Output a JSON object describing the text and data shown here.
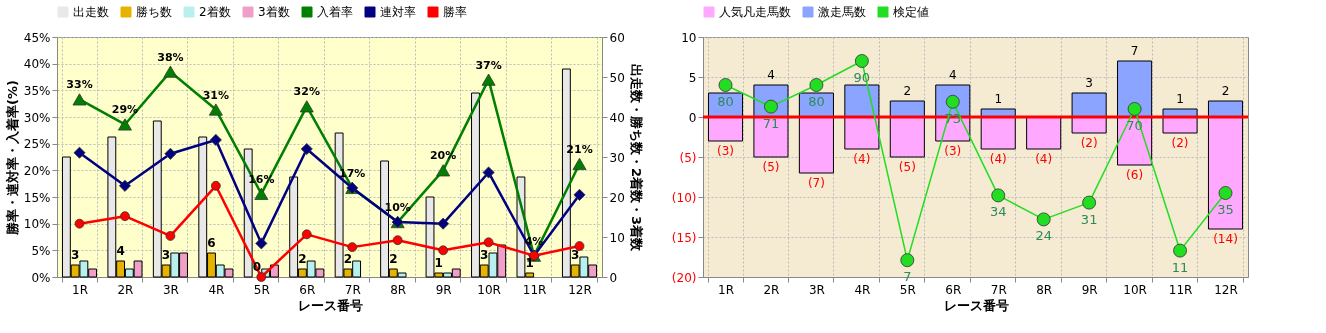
{
  "chart_data": [
    {
      "type": "bar",
      "xlabel": "レース番号",
      "ylabel": "勝率・連対率・入着率(%)",
      "y2label": "出走数・勝ち数・2着数・3着数",
      "categories": [
        "1R",
        "2R",
        "3R",
        "4R",
        "5R",
        "6R",
        "7R",
        "8R",
        "9R",
        "10R",
        "11R",
        "12R"
      ],
      "ylim": [
        0,
        45
      ],
      "yticks": [
        {
          "value": 0,
          "label": "0%"
        },
        {
          "value": 5,
          "label": "5%"
        },
        {
          "value": 10,
          "label": "10%"
        },
        {
          "value": 15,
          "label": "15%"
        },
        {
          "value": 20,
          "label": "20%"
        },
        {
          "value": 25,
          "label": "25%"
        },
        {
          "value": 30,
          "label": "30%"
        },
        {
          "value": 35,
          "label": "35%"
        },
        {
          "value": 40,
          "label": "40%"
        },
        {
          "value": 45,
          "label": "45%"
        }
      ],
      "y2lim": [
        0,
        60
      ],
      "y2ticks": [
        0,
        10,
        20,
        30,
        40,
        50,
        60
      ],
      "grid": true,
      "legend": "top",
      "series": [
        {
          "name": "出走数",
          "axis": "y2",
          "color": "#e8e8e8",
          "values": [
            30,
            35,
            39,
            35,
            32,
            25,
            36,
            29,
            20,
            46,
            25,
            52
          ]
        },
        {
          "name": "勝ち数",
          "axis": "y2",
          "color": "#e6b400",
          "values": [
            3,
            4,
            3,
            6,
            0,
            2,
            2,
            2,
            1,
            3,
            1,
            3
          ],
          "value_labels": [
            "3",
            "4",
            "3",
            "6",
            "0",
            "2",
            "2",
            "2",
            "1",
            "3",
            "1",
            "3"
          ]
        },
        {
          "name": "2着数",
          "axis": "y2",
          "color": "#b8f0f0",
          "values": [
            4,
            2,
            6,
            3,
            2,
            4,
            4,
            1,
            1,
            6,
            0,
            5
          ]
        },
        {
          "name": "3着数",
          "axis": "y2",
          "color": "#f0a0c8",
          "values": [
            2,
            4,
            6,
            2,
            3,
            2,
            0,
            0,
            2,
            8,
            0,
            3
          ]
        },
        {
          "name": "入着率",
          "type": "line",
          "color": "#008000",
          "marker": "triangle",
          "values": [
            33.3,
            28.6,
            38.5,
            31.4,
            15.6,
            32.0,
            16.7,
            10.3,
            20.0,
            37.0,
            4.0,
            21.2
          ],
          "value_labels": [
            "33%",
            "29%",
            "38%",
            "31%",
            "16%",
            "32%",
            "17%",
            "10%",
            "20%",
            "37%",
            "4%",
            "21%"
          ]
        },
        {
          "name": "連対率",
          "type": "line",
          "color": "#000080",
          "marker": "diamond",
          "values": [
            23.3,
            17.1,
            23.1,
            25.7,
            6.3,
            24.0,
            16.7,
            10.3,
            10.0,
            19.6,
            4.0,
            15.4
          ]
        },
        {
          "name": "勝率",
          "type": "line",
          "color": "#ff0000",
          "marker": "circle",
          "values": [
            10.0,
            11.4,
            7.7,
            17.1,
            0.0,
            8.0,
            5.6,
            6.9,
            5.0,
            6.5,
            4.0,
            5.8
          ]
        }
      ]
    },
    {
      "type": "bar",
      "stacked": true,
      "xlabel": "レース番号",
      "categories": [
        "1R",
        "2R",
        "3R",
        "4R",
        "5R",
        "6R",
        "7R",
        "8R",
        "9R",
        "10R",
        "11R",
        "12R"
      ],
      "ylim": [
        -20,
        10
      ],
      "yticks": [
        {
          "value": -20,
          "label": "(20)"
        },
        {
          "value": -15,
          "label": "(15)"
        },
        {
          "value": -10,
          "label": "(10)"
        },
        {
          "value": -5,
          "label": "(5)"
        },
        0,
        5,
        10
      ],
      "y2lim": [
        0,
        100
      ],
      "grid": true,
      "legend": "top",
      "data_labels": true,
      "ref_lines": [
        {
          "axis": "y",
          "value": 0,
          "color": "#ff0000"
        }
      ],
      "series": [
        {
          "name": "人気凡走馬数",
          "color": "#ffa8ff",
          "values": [
            -3,
            -5,
            -7,
            -4,
            -5,
            -3,
            -4,
            -4,
            -2,
            -6,
            -2,
            -14
          ],
          "value_labels": [
            "(3)",
            "(5)",
            "(7)",
            "(4)",
            "(5)",
            "(3)",
            "(4)",
            "(4)",
            "(2)",
            "(6)",
            "(2)",
            "(14)"
          ]
        },
        {
          "name": "激走馬数",
          "color": "#8aa4ff",
          "values": [
            3,
            4,
            3,
            4,
            2,
            4,
            1,
            0,
            3,
            7,
            1,
            2
          ],
          "value_labels": [
            null,
            "4",
            null,
            null,
            "2",
            "4",
            "1",
            null,
            "3",
            "7",
            "1",
            "2"
          ]
        },
        {
          "name": "検定値",
          "type": "line",
          "axis": "y2",
          "color": "#22dd22",
          "marker": "circle",
          "values": [
            80,
            71,
            80,
            90,
            7,
            73,
            34,
            24,
            31,
            70,
            11,
            35
          ]
        }
      ]
    }
  ]
}
